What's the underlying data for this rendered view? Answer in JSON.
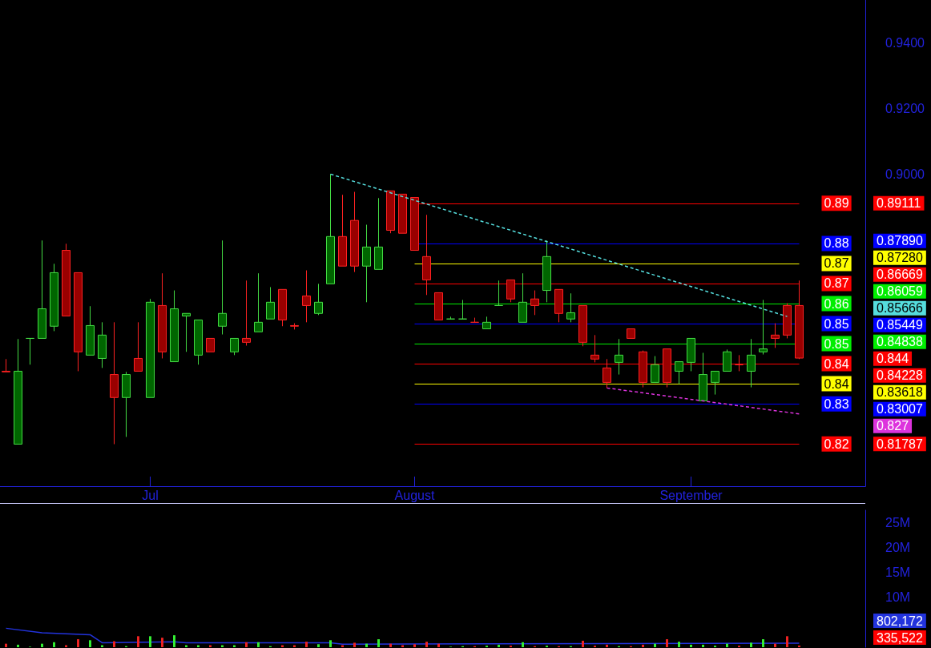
{
  "chart_data": [
    {
      "type": "candlestick",
      "categories": [
        null,
        null,
        null,
        null,
        null,
        null,
        null,
        null,
        null,
        null,
        null,
        null,
        "Jul",
        null,
        null,
        null,
        null,
        null,
        null,
        null,
        null,
        null,
        null,
        null,
        null,
        null,
        null,
        null,
        null,
        null,
        null,
        null,
        null,
        null,
        "August",
        null,
        null,
        null,
        null,
        null,
        null,
        null,
        null,
        null,
        null,
        null,
        null,
        null,
        null,
        null,
        null,
        null,
        null,
        null,
        null,
        null,
        null,
        "September",
        null,
        null,
        null,
        null,
        null,
        null,
        null,
        null,
        null,
        null,
        null,
        null,
        null,
        null
      ],
      "ohlc": [
        [
          0.84,
          0.8437,
          0.8398,
          0.8398
        ],
        [
          0.8178,
          0.8498,
          0.8178,
          0.84
        ],
        [
          0.85,
          0.85,
          0.842,
          0.85
        ],
        [
          0.85,
          0.8798,
          0.85,
          0.859
        ],
        [
          0.8537,
          0.8727,
          0.8522,
          0.87
        ],
        [
          0.8768,
          0.8788,
          0.8568,
          0.8568
        ],
        [
          0.87,
          0.87,
          0.84,
          0.8459
        ],
        [
          0.8449,
          0.8598,
          0.8449,
          0.8539
        ],
        [
          0.8439,
          0.8549,
          0.841,
          0.851
        ],
        [
          0.839,
          0.8549,
          0.8178,
          0.832
        ],
        [
          0.832,
          0.8398,
          0.82,
          0.839
        ],
        [
          0.8439,
          0.8549,
          0.84,
          0.84
        ],
        [
          0.832,
          0.862,
          0.832,
          0.861
        ],
        [
          0.86,
          0.8698,
          0.8439,
          0.8459
        ],
        [
          0.8429,
          0.8646,
          0.8429,
          0.859
        ],
        [
          0.8568,
          0.8576,
          0.8459,
          0.8576
        ],
        [
          0.8449,
          0.8556,
          0.842,
          0.8556
        ],
        [
          0.85,
          0.85,
          0.8459,
          0.8459
        ],
        [
          0.8537,
          0.8798,
          0.8512,
          0.8576
        ],
        [
          0.8459,
          0.85,
          0.8449,
          0.85
        ],
        [
          0.85,
          0.8676,
          0.8478,
          0.8488
        ],
        [
          0.852,
          0.8698,
          0.852,
          0.8549
        ],
        [
          0.8559,
          0.8656,
          0.8559,
          0.861
        ],
        [
          0.8649,
          0.8649,
          0.8537,
          0.8556
        ],
        [
          0.8539,
          0.8546,
          0.8527,
          0.8537
        ],
        [
          0.8629,
          0.8707,
          0.8549,
          0.86
        ],
        [
          0.8576,
          0.8666,
          0.8571,
          0.861
        ],
        [
          0.8666,
          0.9,
          0.8666,
          0.881
        ],
        [
          0.881,
          0.8937,
          0.872,
          0.872
        ],
        [
          0.8859,
          0.8946,
          0.8702,
          0.872
        ],
        [
          0.872,
          0.8846,
          0.861,
          0.8778
        ],
        [
          0.871,
          0.8927,
          0.871,
          0.8778
        ],
        [
          0.8949,
          0.8949,
          0.882,
          0.8829
        ],
        [
          0.8939,
          0.8939,
          0.882,
          0.882
        ],
        [
          0.8929,
          0.8929,
          0.8768,
          0.8768
        ],
        [
          0.8749,
          0.8876,
          0.8632,
          0.8678
        ],
        [
          0.8639,
          0.8639,
          0.8556,
          0.8556
        ],
        [
          0.8559,
          0.8566,
          0.8559,
          0.8559
        ],
        [
          0.8559,
          0.8617,
          0.8559,
          0.8559
        ],
        [
          0.8549,
          0.8563,
          0.8549,
          0.8549
        ],
        [
          0.8529,
          0.8566,
          0.8529,
          0.8549
        ],
        [
          0.86,
          0.8676,
          0.86,
          0.86
        ],
        [
          0.8678,
          0.8678,
          0.861,
          0.862
        ],
        [
          0.8549,
          0.8698,
          0.8549,
          0.861
        ],
        [
          0.862,
          0.8646,
          0.8571,
          0.86
        ],
        [
          0.8646,
          0.8798,
          0.861,
          0.8749
        ],
        [
          0.8649,
          0.8649,
          0.8549,
          0.8576
        ],
        [
          0.8559,
          0.8637,
          0.8549,
          0.8578
        ],
        [
          0.86,
          0.86,
          0.8476,
          0.8488
        ],
        [
          0.8449,
          0.851,
          0.8427,
          0.8437
        ],
        [
          0.841,
          0.8437,
          0.8349,
          0.8366
        ],
        [
          0.8427,
          0.8498,
          0.839,
          0.8449
        ],
        [
          0.8529,
          0.8529,
          0.85,
          0.85
        ],
        [
          0.8459,
          0.8463,
          0.8351,
          0.8366
        ],
        [
          0.8366,
          0.8446,
          0.8366,
          0.842
        ],
        [
          0.8468,
          0.8468,
          0.8351,
          0.8366
        ],
        [
          0.84,
          0.8429,
          0.8361,
          0.8429
        ],
        [
          0.8427,
          0.85,
          0.84,
          0.85
        ],
        [
          0.831,
          0.8456,
          0.831,
          0.839
        ],
        [
          0.8366,
          0.84,
          0.8329,
          0.84
        ],
        [
          0.84,
          0.8466,
          0.84,
          0.8459
        ],
        [
          0.842,
          0.8449,
          0.84,
          0.842
        ],
        [
          0.84,
          0.8498,
          0.8351,
          0.8449
        ],
        [
          0.8459,
          0.8617,
          0.8451,
          0.8468
        ],
        [
          0.851,
          0.8546,
          0.8471,
          0.85
        ],
        [
          0.86,
          0.8607,
          0.85,
          0.851
        ],
        [
          0.86,
          0.8676,
          0.8437,
          0.844
        ],
        null,
        null,
        null,
        null,
        null
      ],
      "series": [
        {
          "type": "line",
          "color": "#55dddd",
          "line_style": "dashed",
          "values": [
            null,
            null,
            null,
            null,
            null,
            null,
            null,
            null,
            null,
            null,
            null,
            null,
            null,
            null,
            null,
            null,
            null,
            null,
            null,
            null,
            null,
            null,
            null,
            null,
            null,
            null,
            null,
            0.9,
            null,
            null,
            null,
            null,
            null,
            null,
            null,
            null,
            null,
            null,
            null,
            null,
            null,
            null,
            null,
            null,
            null,
            null,
            null,
            null,
            null,
            null,
            null,
            null,
            null,
            null,
            null,
            null,
            null,
            null,
            null,
            null,
            null,
            null,
            null,
            null,
            null,
            0.85666,
            null,
            null,
            null,
            null,
            null,
            null
          ]
        },
        {
          "type": "line",
          "color": "#dd33dd",
          "line_style": "dashed",
          "values": [
            null,
            null,
            null,
            null,
            null,
            null,
            null,
            null,
            null,
            null,
            null,
            null,
            null,
            null,
            null,
            null,
            null,
            null,
            null,
            null,
            null,
            null,
            null,
            null,
            null,
            null,
            null,
            null,
            null,
            null,
            null,
            null,
            null,
            null,
            null,
            null,
            null,
            null,
            null,
            null,
            null,
            null,
            null,
            null,
            null,
            null,
            null,
            null,
            null,
            null,
            0.8349,
            null,
            null,
            null,
            null,
            null,
            null,
            null,
            null,
            null,
            null,
            null,
            null,
            null,
            null,
            null,
            0.827,
            null,
            null,
            null,
            null,
            null
          ]
        }
      ],
      "ref_lines": [
        {
          "axis": "y",
          "value": 0.89111,
          "label": "0.89",
          "color": "#ff0000"
        },
        {
          "axis": "y",
          "value": 0.8789,
          "label": "0.88",
          "color": "#0000ff"
        },
        {
          "axis": "y",
          "value": 0.8728,
          "label": "0.87",
          "color": "#ffff00"
        },
        {
          "axis": "y",
          "value": 0.86669,
          "label": "0.87",
          "color": "#ff0000"
        },
        {
          "axis": "y",
          "value": 0.86059,
          "label": "0.86",
          "color": "#00ee00"
        },
        {
          "axis": "y",
          "value": 0.85449,
          "label": "0.85",
          "color": "#0000ff"
        },
        {
          "axis": "y",
          "value": 0.84838,
          "label": "0.85",
          "color": "#00ee00"
        },
        {
          "axis": "y",
          "value": 0.84228,
          "label": "0.84",
          "color": "#ff0000"
        },
        {
          "axis": "y",
          "value": 0.83618,
          "label": "0.84",
          "color": "#ffff00"
        },
        {
          "axis": "y",
          "value": 0.83007,
          "label": "0.83",
          "color": "#0000ff"
        },
        {
          "axis": "y",
          "value": 0.81787,
          "label": "0.82",
          "color": "#ff0000"
        }
      ],
      "annotations": [
        "0.89111",
        "0.87890",
        "0.87280",
        "0.86669",
        "0.86059",
        "0.85666",
        "0.85449",
        "0.84838",
        "0.844",
        "0.84228",
        "0.83618",
        "0.83007",
        "0.827",
        "0.81787"
      ],
      "ylim": [
        0.805,
        0.953
      ],
      "yticks": [
        {
          "value": 0.9,
          "label": "0.9000"
        },
        {
          "value": 0.92,
          "label": "0.9200"
        },
        {
          "value": 0.94,
          "label": "0.9400"
        }
      ]
    },
    {
      "type": "bar",
      "categories": [
        null,
        null,
        null,
        null,
        null,
        null,
        null,
        null,
        null,
        null,
        null,
        null,
        null,
        null,
        null,
        null,
        null,
        null,
        null,
        null,
        null,
        null,
        null,
        null,
        null,
        null,
        null,
        null,
        null,
        null,
        null,
        null,
        null,
        null,
        null,
        null,
        null,
        null,
        null,
        null,
        null,
        null,
        null,
        null,
        null,
        null,
        null,
        null,
        null,
        null,
        null,
        null,
        null,
        null,
        null,
        null,
        null,
        null,
        null,
        null,
        null,
        null,
        null,
        null,
        null,
        null,
        null,
        null,
        null,
        null,
        null,
        null
      ],
      "series": [
        {
          "type": "bar",
          "values": [
            700000,
            500000,
            100000,
            700000,
            1000000,
            400000,
            1600000,
            1400000,
            400000,
            1200000,
            200000,
            2200000,
            2200000,
            1900000,
            2400000,
            400000,
            400000,
            400000,
            400000,
            400000,
            1000000,
            1000000,
            200000,
            400000,
            400000,
            1100000,
            600000,
            1400000,
            400000,
            900000,
            700000,
            1600000,
            700000,
            400000,
            600000,
            1100000,
            700000,
            100000,
            200000,
            200000,
            300000,
            500000,
            300000,
            1000000,
            200000,
            300000,
            200000,
            200000,
            1300000,
            300000,
            500000,
            200000,
            200000,
            500000,
            700000,
            1600000,
            1100000,
            500000,
            500000,
            300000,
            700000,
            300000,
            900000,
            1600000,
            700000,
            2200000,
            335522,
            null,
            null,
            null,
            null,
            null
          ],
          "colors": [
            "#ee2222",
            "#33ee33",
            "#33ee33",
            "#33ee33",
            "#33ee33",
            "#ee2222",
            "#ee2222",
            "#33ee33",
            "#33ee33",
            "#ee2222",
            "#33ee33",
            "#ee2222",
            "#33ee33",
            "#ee2222",
            "#33ee33",
            "#33ee33",
            "#33ee33",
            "#ee2222",
            "#33ee33",
            "#33ee33",
            "#ee2222",
            "#33ee33",
            "#33ee33",
            "#ee2222",
            "#ee2222",
            "#ee2222",
            "#33ee33",
            "#33ee33",
            "#ee2222",
            "#ee2222",
            "#33ee33",
            "#33ee33",
            "#ee2222",
            "#ee2222",
            "#ee2222",
            "#ee2222",
            "#ee2222",
            "#33ee33",
            "#33ee33",
            "#ee2222",
            "#33ee33",
            "#33ee33",
            "#ee2222",
            "#33ee33",
            "#ee2222",
            "#33ee33",
            "#ee2222",
            "#33ee33",
            "#ee2222",
            "#ee2222",
            "#ee2222",
            "#33ee33",
            "#ee2222",
            "#ee2222",
            "#33ee33",
            "#ee2222",
            "#33ee33",
            "#33ee33",
            "#33ee33",
            "#33ee33",
            "#33ee33",
            "#ee2222",
            "#33ee33",
            "#33ee33",
            "#ee2222",
            "#ee2222",
            "#ee2222",
            null,
            null,
            null,
            null,
            null
          ]
        },
        {
          "type": "line",
          "color": "#2233dd",
          "values": [
            3800000,
            null,
            null,
            2900000,
            null,
            null,
            null,
            2500000,
            900000,
            null,
            null,
            null,
            null,
            null,
            1100000,
            900000,
            null,
            null,
            null,
            null,
            null,
            null,
            null,
            null,
            null,
            null,
            null,
            900000,
            600000,
            null,
            null,
            null,
            null,
            null,
            null,
            null,
            null,
            null,
            null,
            null,
            700000,
            null,
            null,
            null,
            null,
            null,
            null,
            null,
            null,
            null,
            null,
            null,
            null,
            null,
            null,
            null,
            null,
            null,
            null,
            null,
            null,
            null,
            null,
            null,
            null,
            null,
            802172,
            null,
            null,
            null,
            null,
            null
          ]
        }
      ],
      "annotations": [
        "802,172",
        "335,522"
      ],
      "ylim": [
        0,
        27500000
      ],
      "yticks": [
        {
          "value": 10000000,
          "label": "10M"
        },
        {
          "value": 15000000,
          "label": "15M"
        },
        {
          "value": 20000000,
          "label": "20M"
        },
        {
          "value": 25000000,
          "label": "25M"
        }
      ],
      "tick_labels": "y"
    }
  ]
}
